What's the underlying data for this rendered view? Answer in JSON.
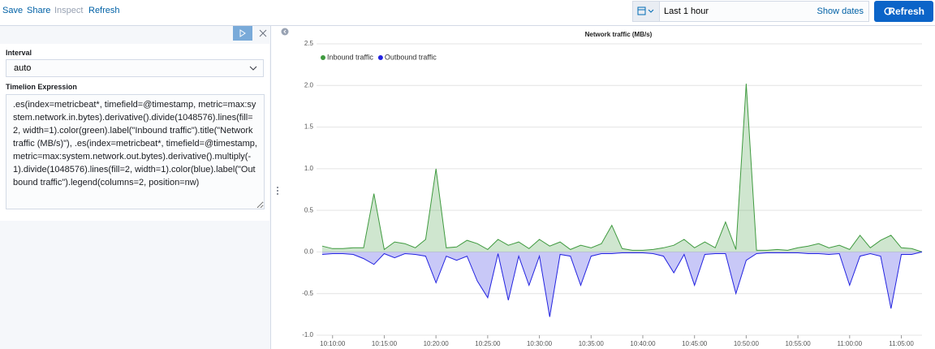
{
  "toolbar": {
    "links": [
      "Save",
      "Share",
      "Inspect",
      "Refresh"
    ],
    "time_range": "Last 1 hour",
    "show_dates": "Show dates",
    "refresh_button": "Refresh"
  },
  "sidebar": {
    "interval_label": "Interval",
    "interval_value": "auto",
    "expression_label": "Timelion Expression",
    "expression": ".es(index=metricbeat*, timefield=@timestamp, metric=max:system.network.in.bytes).derivative().divide(1048576).lines(fill=2, width=1).color(green).label(\"Inbound traffic\").title(\"Network traffic (MB/s)\"), .es(index=metricbeat*, timefield=@timestamp, metric=max:system.network.out.bytes).derivative().multiply(-1).divide(1048576).lines(fill=2, width=1).color(blue).label(\"Outbound traffic\").legend(columns=2, position=nw)"
  },
  "chart_data": {
    "type": "area",
    "title": "Network traffic (MB/s)",
    "x": [
      "10:09:00",
      "10:10:00",
      "10:11:00",
      "10:12:00",
      "10:13:00",
      "10:14:00",
      "10:15:00",
      "10:16:00",
      "10:17:00",
      "10:18:00",
      "10:19:00",
      "10:20:00",
      "10:21:00",
      "10:22:00",
      "10:23:00",
      "10:24:00",
      "10:25:00",
      "10:26:00",
      "10:27:00",
      "10:28:00",
      "10:29:00",
      "10:30:00",
      "10:31:00",
      "10:32:00",
      "10:33:00",
      "10:34:00",
      "10:35:00",
      "10:36:00",
      "10:37:00",
      "10:38:00",
      "10:39:00",
      "10:40:00",
      "10:41:00",
      "10:42:00",
      "10:43:00",
      "10:44:00",
      "10:45:00",
      "10:46:00",
      "10:47:00",
      "10:48:00",
      "10:49:00",
      "10:50:00",
      "10:51:00",
      "10:52:00",
      "10:53:00",
      "10:54:00",
      "10:55:00",
      "10:56:00",
      "10:57:00",
      "10:58:00",
      "10:59:00",
      "11:00:00",
      "11:01:00",
      "11:02:00",
      "11:03:00",
      "11:04:00",
      "11:05:00",
      "11:06:00",
      "11:07:00"
    ],
    "series": [
      {
        "name": "Inbound traffic",
        "color": "#3f9a3f",
        "values": [
          0.07,
          0.04,
          0.04,
          0.05,
          0.05,
          0.7,
          0.03,
          0.12,
          0.1,
          0.05,
          0.15,
          1.0,
          0.05,
          0.06,
          0.14,
          0.1,
          0.03,
          0.15,
          0.08,
          0.12,
          0.04,
          0.15,
          0.07,
          0.12,
          0.03,
          0.08,
          0.05,
          0.1,
          0.32,
          0.04,
          0.02,
          0.02,
          0.03,
          0.05,
          0.08,
          0.15,
          0.05,
          0.12,
          0.05,
          0.36,
          0.03,
          2.02,
          0.02,
          0.02,
          0.03,
          0.02,
          0.05,
          0.07,
          0.1,
          0.05,
          0.08,
          0.03,
          0.2,
          0.05,
          0.14,
          0.2,
          0.05,
          0.04,
          0.0
        ]
      },
      {
        "name": "Outbound traffic",
        "color": "#2323e0",
        "values": [
          -0.03,
          -0.02,
          -0.02,
          -0.03,
          -0.08,
          -0.15,
          -0.02,
          -0.07,
          -0.02,
          -0.03,
          -0.05,
          -0.37,
          -0.05,
          -0.1,
          -0.05,
          -0.35,
          -0.55,
          -0.02,
          -0.58,
          -0.05,
          -0.4,
          -0.05,
          -0.78,
          -0.03,
          -0.05,
          -0.4,
          -0.05,
          -0.02,
          -0.02,
          -0.01,
          -0.01,
          -0.01,
          -0.02,
          -0.05,
          -0.25,
          -0.03,
          -0.4,
          -0.03,
          -0.02,
          -0.02,
          -0.5,
          -0.1,
          -0.02,
          -0.01,
          -0.01,
          -0.01,
          -0.01,
          -0.02,
          -0.02,
          -0.03,
          -0.02,
          -0.4,
          -0.05,
          -0.02,
          -0.05,
          -0.68,
          -0.03,
          -0.03,
          0.0
        ]
      }
    ],
    "ylim": [
      -1,
      2.5
    ],
    "yticks": [
      {
        "value": -1,
        "label": "-1.0"
      },
      -0.5,
      {
        "value": 0,
        "label": "0.0"
      },
      0.5,
      {
        "value": 1,
        "label": "1.0"
      },
      1.5,
      {
        "value": 2,
        "label": "2.0"
      },
      2.5
    ],
    "xticks": [
      "10:10:00",
      "10:15:00",
      "10:20:00",
      "10:25:00",
      "10:30:00",
      "10:35:00",
      "10:40:00",
      "10:45:00",
      "10:50:00",
      "10:55:00",
      "11:00:00",
      "11:05:00"
    ],
    "grid": true,
    "legend": "nw"
  }
}
